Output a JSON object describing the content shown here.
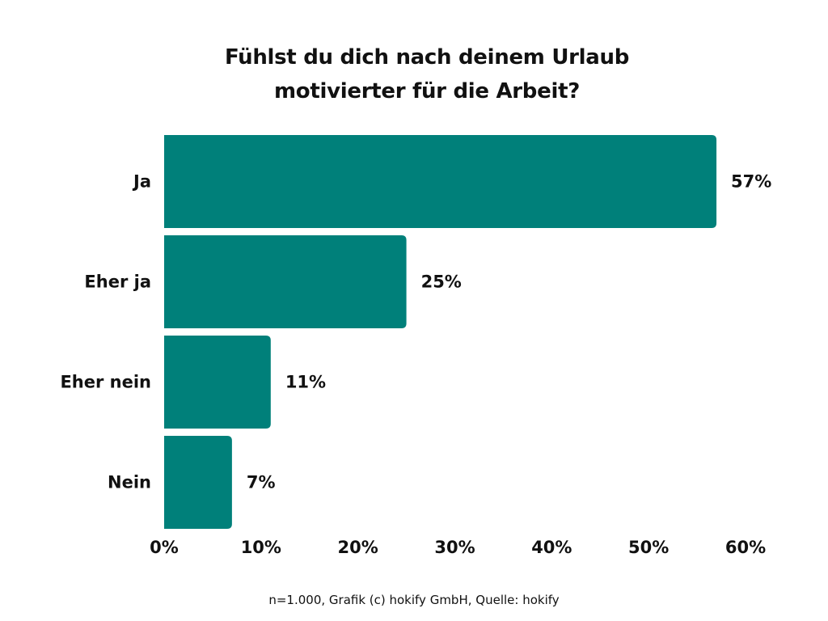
{
  "chart_data": {
    "type": "bar",
    "orientation": "horizontal",
    "title_lines": [
      "Fühlst du dich nach deinem Urlaub",
      "motivierter für die Arbeit?"
    ],
    "categories": [
      "Ja",
      "Eher ja",
      "Eher nein",
      "Nein"
    ],
    "values": [
      57,
      25,
      11,
      7
    ],
    "value_labels": [
      "57%",
      "25%",
      "11%",
      "7%"
    ],
    "xlim": [
      0,
      60
    ],
    "xticks": [
      0,
      10,
      20,
      30,
      40,
      50,
      60
    ],
    "xtick_labels": [
      "0%",
      "10%",
      "20%",
      "30%",
      "40%",
      "50%",
      "60%"
    ],
    "xlabel": "",
    "ylabel": "",
    "grid": false,
    "legend": "none",
    "bar_color": "#00807A"
  },
  "footer": "n=1.000, Grafik (c) hokify GmbH, Quelle: hokify"
}
